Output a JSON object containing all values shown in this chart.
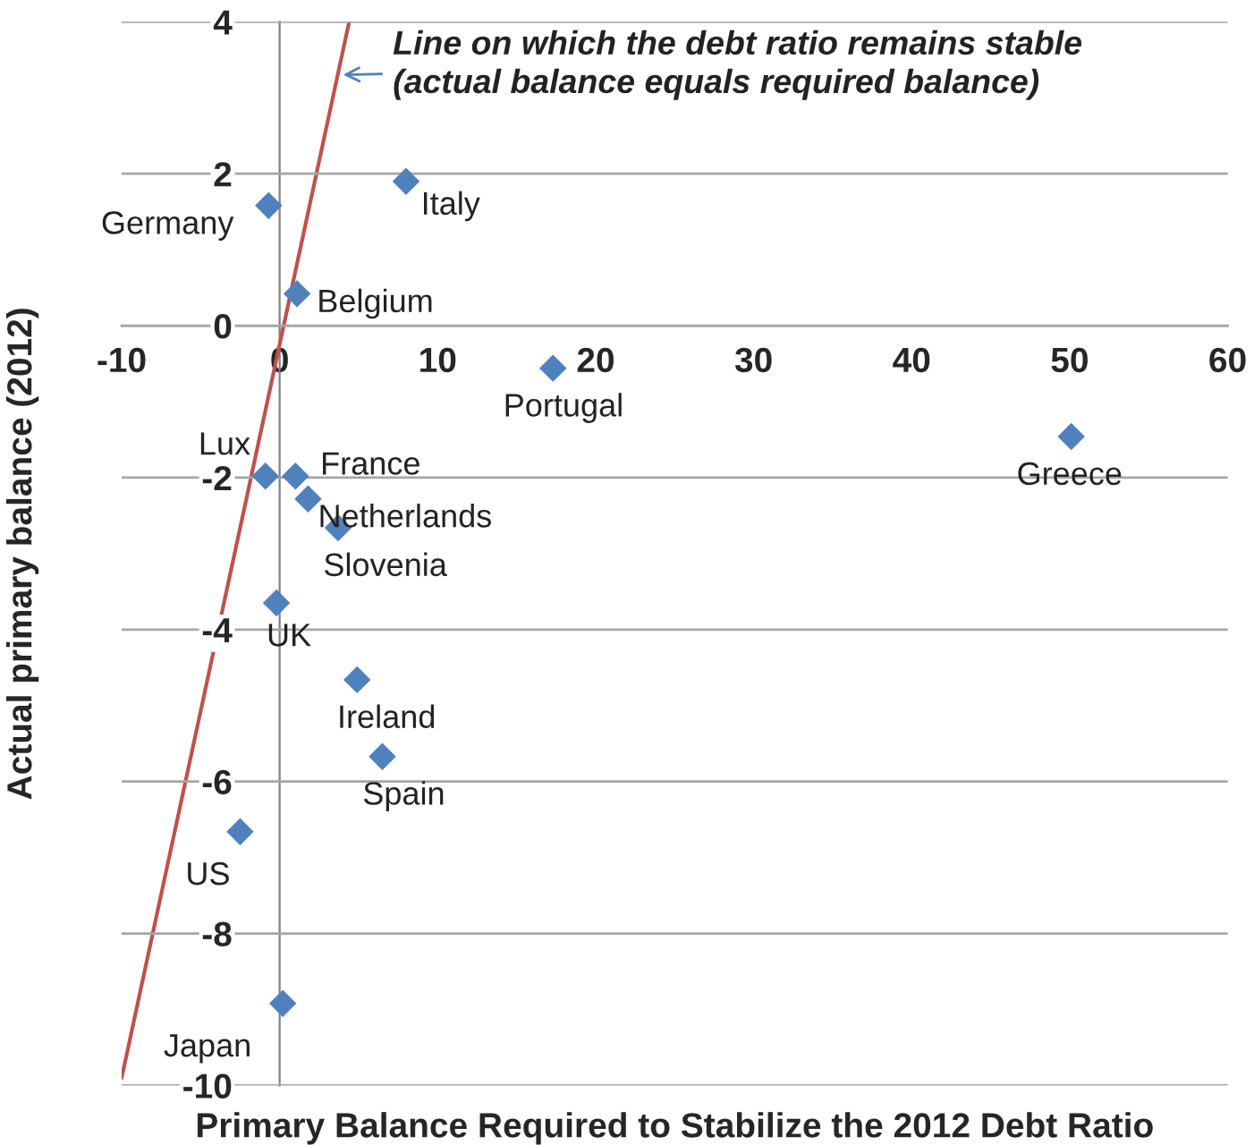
{
  "chart_data": {
    "type": "scatter",
    "xlabel": "Primary Balance Required to Stabilize the 2012 Debt Ratio",
    "ylabel": "Actual primary balance (2012)",
    "xlim": [
      -10,
      60
    ],
    "xticks": [
      -10,
      0,
      10,
      20,
      30,
      40,
      50,
      60
    ],
    "ylim": [
      -10,
      4
    ],
    "yticks": [
      -10,
      -8,
      -6,
      -4,
      -2,
      0,
      2,
      4
    ],
    "grid": "y",
    "series": [
      {
        "marker": "diamond",
        "color": "#4f81bd",
        "x": [
          -0.7,
          8.0,
          1.1,
          17.3,
          50.1,
          -0.9,
          1.0,
          1.8,
          3.7,
          -0.2,
          4.9,
          6.5,
          -2.5,
          0.2
        ],
        "values": [
          1.58,
          1.9,
          0.42,
          -0.56,
          -1.46,
          -1.98,
          -1.98,
          -2.28,
          -2.66,
          -3.65,
          -4.66,
          -5.67,
          -6.66,
          -8.92
        ]
      },
      {
        "type": "line",
        "marker": "none",
        "color": "#c0504d",
        "x": [
          -10,
          4.4
        ],
        "values": [
          -9.9,
          4.0
        ]
      }
    ],
    "annotations": [
      {
        "text": "Germany",
        "x": -0.7,
        "y": 1.58
      },
      {
        "text": "Italy",
        "x": 8.0,
        "y": 1.9
      },
      {
        "text": "Belgium",
        "x": 1.1,
        "y": 0.42
      },
      {
        "text": "Portugal",
        "x": 17.3,
        "y": -0.56
      },
      {
        "text": "Greece",
        "x": 50.1,
        "y": -1.46
      },
      {
        "text": "Lux",
        "x": -0.9,
        "y": -1.98
      },
      {
        "text": "France",
        "x": 1.0,
        "y": -1.98
      },
      {
        "text": "Netherlands",
        "x": 1.8,
        "y": -2.28
      },
      {
        "text": "Slovenia",
        "x": 3.7,
        "y": -2.66
      },
      {
        "text": "UK",
        "x": -0.2,
        "y": -3.65
      },
      {
        "text": "Ireland",
        "x": 4.9,
        "y": -4.66
      },
      {
        "text": "Spain",
        "x": 6.5,
        "y": -5.67
      },
      {
        "text": "US",
        "x": -2.5,
        "y": -6.66
      },
      {
        "text": "Japan",
        "x": 0.2,
        "y": -8.92
      },
      {
        "text": "Line on which the debt ratio remains stable\n(actual balance equals required balance)",
        "x": 3.7,
        "y": 3.3
      }
    ]
  }
}
